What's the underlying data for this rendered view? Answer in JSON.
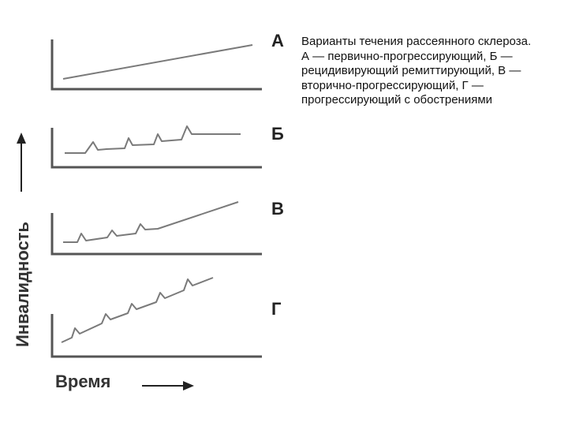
{
  "caption": "Варианты течения рассеянного склероза. А — первично-прогрессирующий, Б — рецидивирующий ремиттирующий, В — вторично-прогрессирующий, Г — прогрессирующий с обострениями",
  "axes": {
    "y_label": "Инвалидность",
    "x_label": "Время"
  },
  "panels": [
    {
      "letter": "А"
    },
    {
      "letter": "Б"
    },
    {
      "letter": "В"
    },
    {
      "letter": "Г"
    }
  ],
  "colors": {
    "curve": "#7a7a7a",
    "axis": "#555555",
    "text": "#111111"
  }
}
